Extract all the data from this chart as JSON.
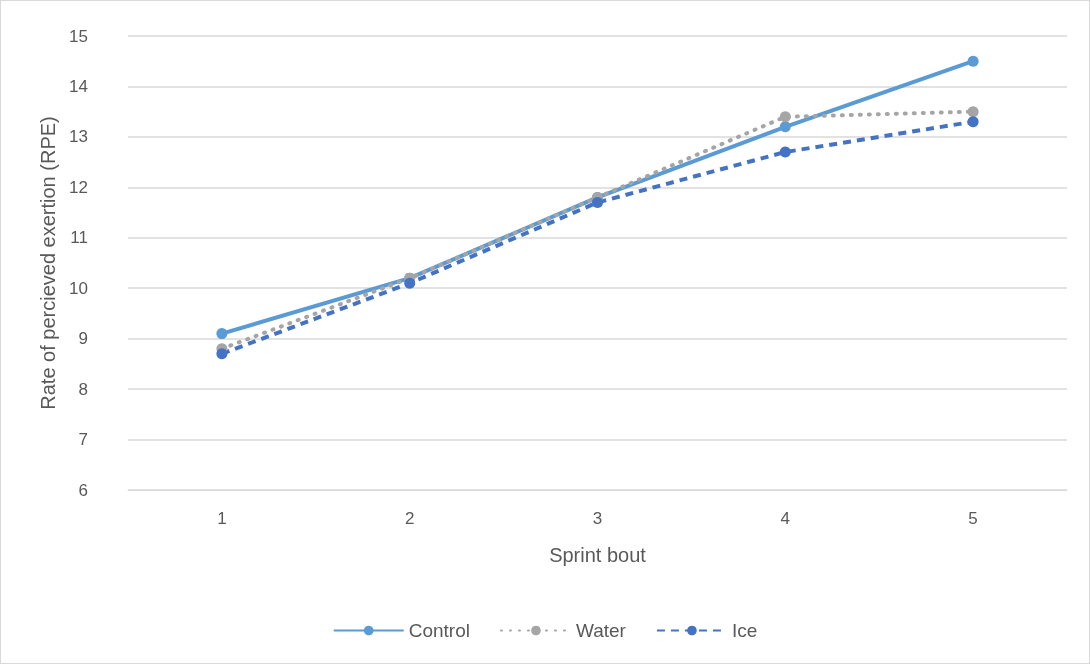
{
  "chart_data": {
    "type": "line",
    "xlabel": "Sprint bout",
    "ylabel": "Rate of percieved exertion (RPE)",
    "categories": [
      "1",
      "2",
      "3",
      "4",
      "5"
    ],
    "series": [
      {
        "name": "Control",
        "color": "#5b9bd5",
        "line_style": "solid",
        "values": [
          9.1,
          10.2,
          11.8,
          13.2,
          14.5
        ]
      },
      {
        "name": "Water",
        "color": "#a5a5a5",
        "line_style": "dotted",
        "values": [
          8.8,
          10.2,
          11.8,
          13.4,
          13.5
        ]
      },
      {
        "name": "Ice",
        "color": "#4472c4",
        "line_style": "dashed",
        "values": [
          8.7,
          10.1,
          11.7,
          12.7,
          13.3
        ]
      }
    ],
    "ylim": [
      6,
      15
    ],
    "yticks": [
      6,
      7,
      8,
      9,
      10,
      11,
      12,
      13,
      14,
      15
    ],
    "grid": "y",
    "legend": "bottom",
    "marker": "circle"
  }
}
